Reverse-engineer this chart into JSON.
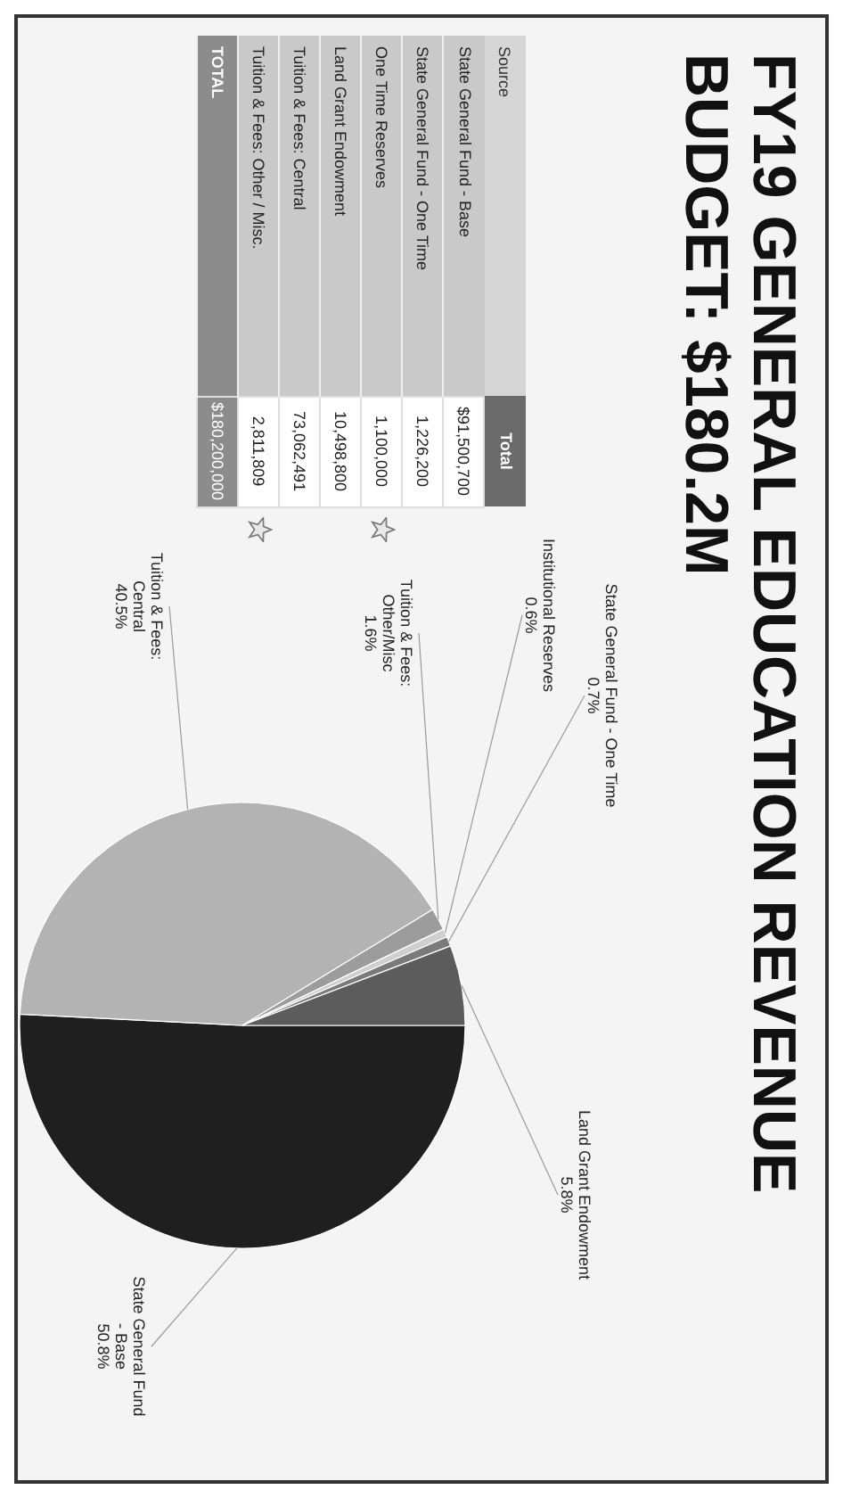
{
  "chart_data": [
    {
      "type": "other",
      "title": "FY19 GENERAL EDUCATION REVENUE BUDGET: $180.2M",
      "xlabel": "Source",
      "ylabel": "Total",
      "categories": [
        "State General Fund - Base",
        "State General Fund - One Time",
        "One Time Reserves",
        "Land Grant Endowment",
        "Tuition & Fees: Central",
        "Tuition & Fees: Other / Misc.",
        "TOTAL"
      ],
      "value_labels": [
        "$91,500,700",
        "1,226,200",
        "1,100,000",
        "10,498,800",
        "73,062,491",
        "2,811,809",
        "$180,200,000"
      ]
    },
    {
      "type": "pie",
      "categories": [
        "State General Fund - Base",
        "Tuition & Fees: Central",
        "Tuition & Fees: Other/Misc",
        "Institutional Reserves",
        "State General Fund - One Time",
        "Land Grant Endowment"
      ],
      "values": [
        50.8,
        40.5,
        1.6,
        0.6,
        0.7,
        5.8
      ],
      "value_labels": [
        "50.8%",
        "40.5%",
        "1.6%",
        "0.6%",
        "0.7%",
        "5.8%"
      ],
      "colors": [
        "#1f1f1f",
        "#b3b3b3",
        "#9c9c9c",
        "#cfcfcf",
        "#7a7a7a",
        "#5c5c5c"
      ]
    }
  ]
}
